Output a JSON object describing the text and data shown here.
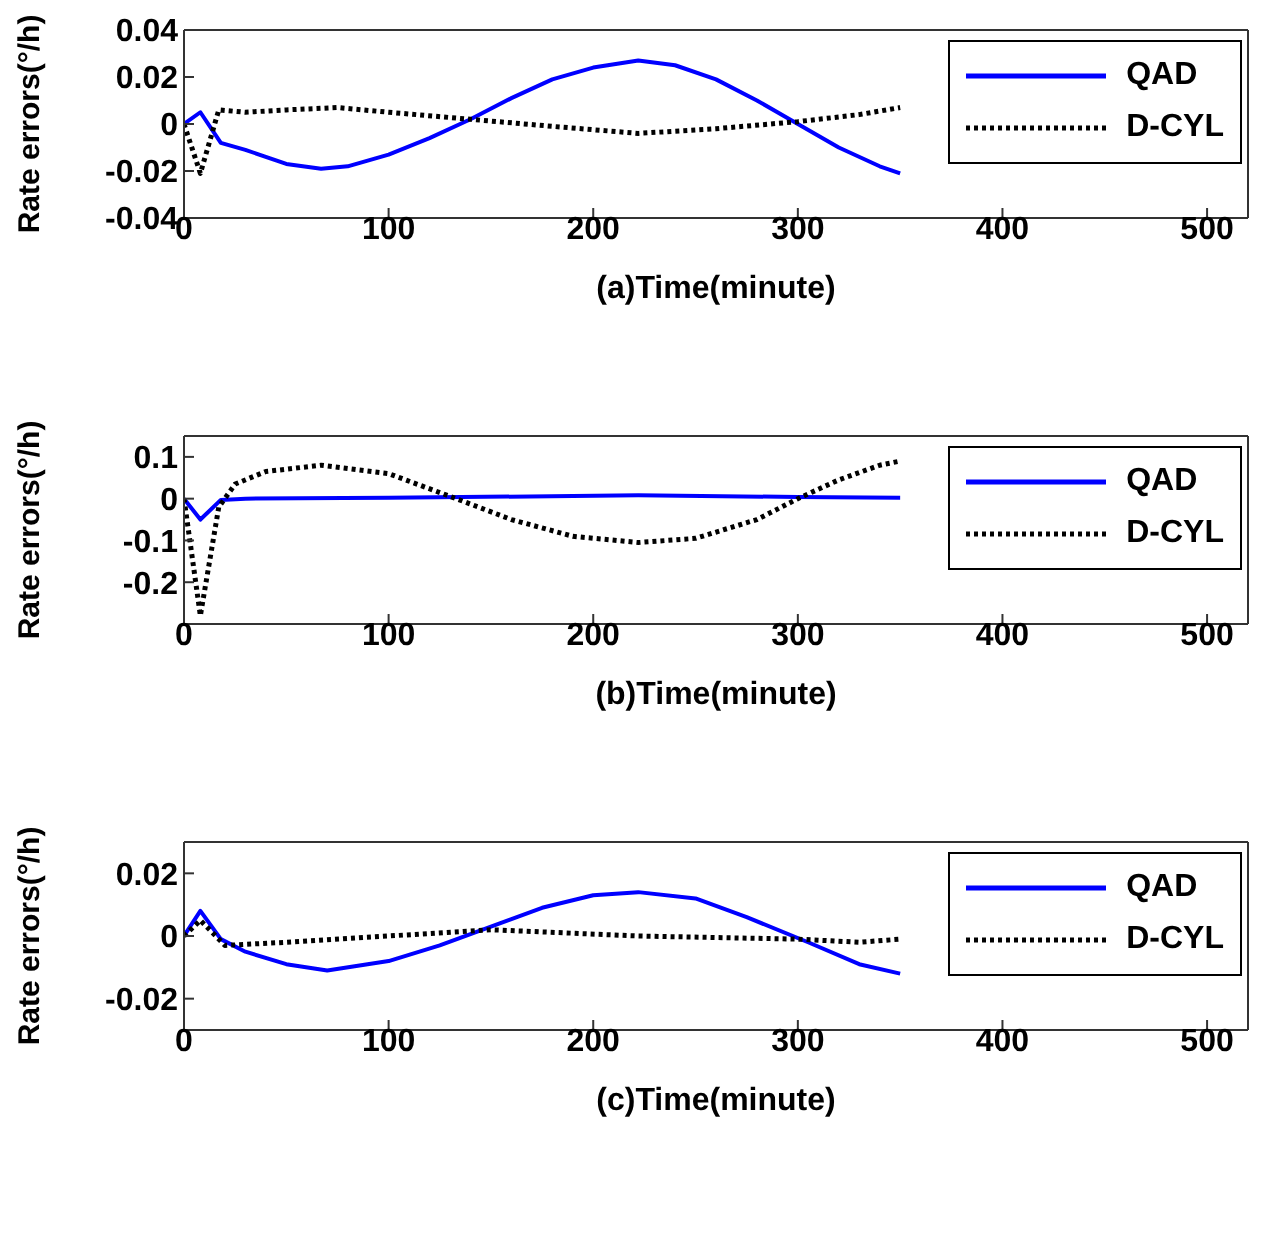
{
  "chart_data": [
    {
      "type": "line",
      "xlabel": "(a)Time(minute)",
      "ylabel": "Rate errors(°/h)",
      "xlim": [
        0,
        520
      ],
      "xticks": [
        0,
        100,
        200,
        300,
        400,
        500
      ],
      "ylim": [
        -0.04,
        0.04
      ],
      "yticks": [
        -0.04,
        -0.02,
        0,
        0.02,
        0.04
      ],
      "legend": "top right",
      "marker": "none",
      "series": [
        {
          "name": "QAD",
          "color": "#0000ff",
          "line_style": "solid",
          "x": [
            0,
            8,
            18,
            30,
            50,
            67,
            80,
            100,
            120,
            140,
            160,
            180,
            200,
            222,
            240,
            260,
            280,
            300,
            320,
            340,
            350
          ],
          "values": [
            0,
            0.005,
            -0.008,
            -0.011,
            -0.017,
            -0.019,
            -0.018,
            -0.013,
            -0.006,
            0.002,
            0.011,
            0.019,
            0.024,
            0.027,
            0.025,
            0.019,
            0.01,
            0,
            -0.01,
            -0.018,
            -0.021
          ]
        },
        {
          "name": "D-CYL",
          "color": "#000000",
          "line_style": "dotted",
          "x": [
            0,
            8,
            17,
            30,
            50,
            75,
            100,
            140,
            180,
            222,
            260,
            300,
            330,
            350
          ],
          "values": [
            0,
            -0.021,
            0.006,
            0.005,
            0.006,
            0.007,
            0.005,
            0.002,
            -0.001,
            -0.004,
            -0.002,
            0.001,
            0.004,
            0.007
          ]
        }
      ]
    },
    {
      "type": "line",
      "xlabel": "(b)Time(minute)",
      "ylabel": "Rate errors(°/h)",
      "xlim": [
        0,
        520
      ],
      "xticks": [
        0,
        100,
        200,
        300,
        400,
        500
      ],
      "ylim": [
        -0.3,
        0.15
      ],
      "yticks": [
        -0.2,
        -0.1,
        0,
        0.1
      ],
      "legend": "top right",
      "marker": "none",
      "series": [
        {
          "name": "QAD",
          "color": "#0000ff",
          "line_style": "solid",
          "x": [
            0,
            8,
            18,
            30,
            100,
            222,
            300,
            350
          ],
          "values": [
            0,
            -0.05,
            -0.003,
            0,
            0.002,
            0.008,
            0.004,
            0.002
          ]
        },
        {
          "name": "D-CYL",
          "color": "#000000",
          "line_style": "dotted",
          "x": [
            0,
            8,
            17,
            25,
            40,
            67,
            100,
            133,
            160,
            190,
            222,
            250,
            280,
            300,
            320,
            340,
            350
          ],
          "values": [
            0,
            -0.28,
            -0.02,
            0.035,
            0.065,
            0.08,
            0.06,
            0,
            -0.05,
            -0.09,
            -0.105,
            -0.095,
            -0.05,
            0,
            0.045,
            0.08,
            0.09
          ]
        }
      ]
    },
    {
      "type": "line",
      "xlabel": "(c)Time(minute)",
      "ylabel": "Rate errors(°/h)",
      "xlim": [
        0,
        520
      ],
      "xticks": [
        0,
        100,
        200,
        300,
        400,
        500
      ],
      "ylim": [
        -0.03,
        0.03
      ],
      "yticks": [
        -0.02,
        0,
        0.02
      ],
      "legend": "top right",
      "marker": "none",
      "series": [
        {
          "name": "QAD",
          "color": "#0000ff",
          "line_style": "solid",
          "x": [
            0,
            8,
            18,
            30,
            50,
            70,
            100,
            125,
            150,
            175,
            200,
            222,
            250,
            275,
            305,
            330,
            350
          ],
          "values": [
            0,
            0.008,
            -0.001,
            -0.005,
            -0.009,
            -0.011,
            -0.008,
            -0.003,
            0.003,
            0.009,
            0.013,
            0.014,
            0.012,
            0.006,
            -0.002,
            -0.009,
            -0.012
          ]
        },
        {
          "name": "D-CYL",
          "color": "#000000",
          "line_style": "dotted",
          "x": [
            0,
            8,
            20,
            50,
            100,
            150,
            222,
            300,
            330,
            350
          ],
          "values": [
            0,
            0.005,
            -0.003,
            -0.002,
            0,
            0.002,
            0,
            -0.001,
            -0.002,
            -0.001
          ]
        }
      ]
    }
  ]
}
